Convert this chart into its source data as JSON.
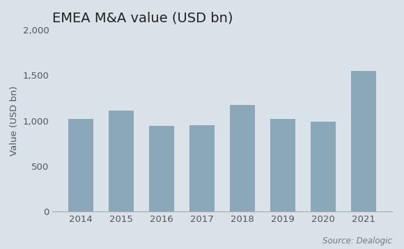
{
  "title": "EMEA M&A value (USD bn)",
  "ylabel": "Value (USD bn)",
  "source": "Source: Dealogic",
  "categories": [
    "2014",
    "2015",
    "2016",
    "2017",
    "2018",
    "2019",
    "2020",
    "2021"
  ],
  "values": [
    1020,
    1110,
    940,
    950,
    1175,
    1020,
    990,
    1545
  ],
  "bar_color": "#8aa8b8",
  "background_color": "#d8e2e8",
  "ylim": [
    0,
    2000
  ],
  "yticks": [
    0,
    500,
    1000,
    1500,
    2000
  ],
  "ytick_labels": [
    "0",
    "500",
    "1,000",
    "1,500",
    "2,000"
  ],
  "title_fontsize": 14,
  "axis_fontsize": 9.5,
  "source_fontsize": 8.5
}
